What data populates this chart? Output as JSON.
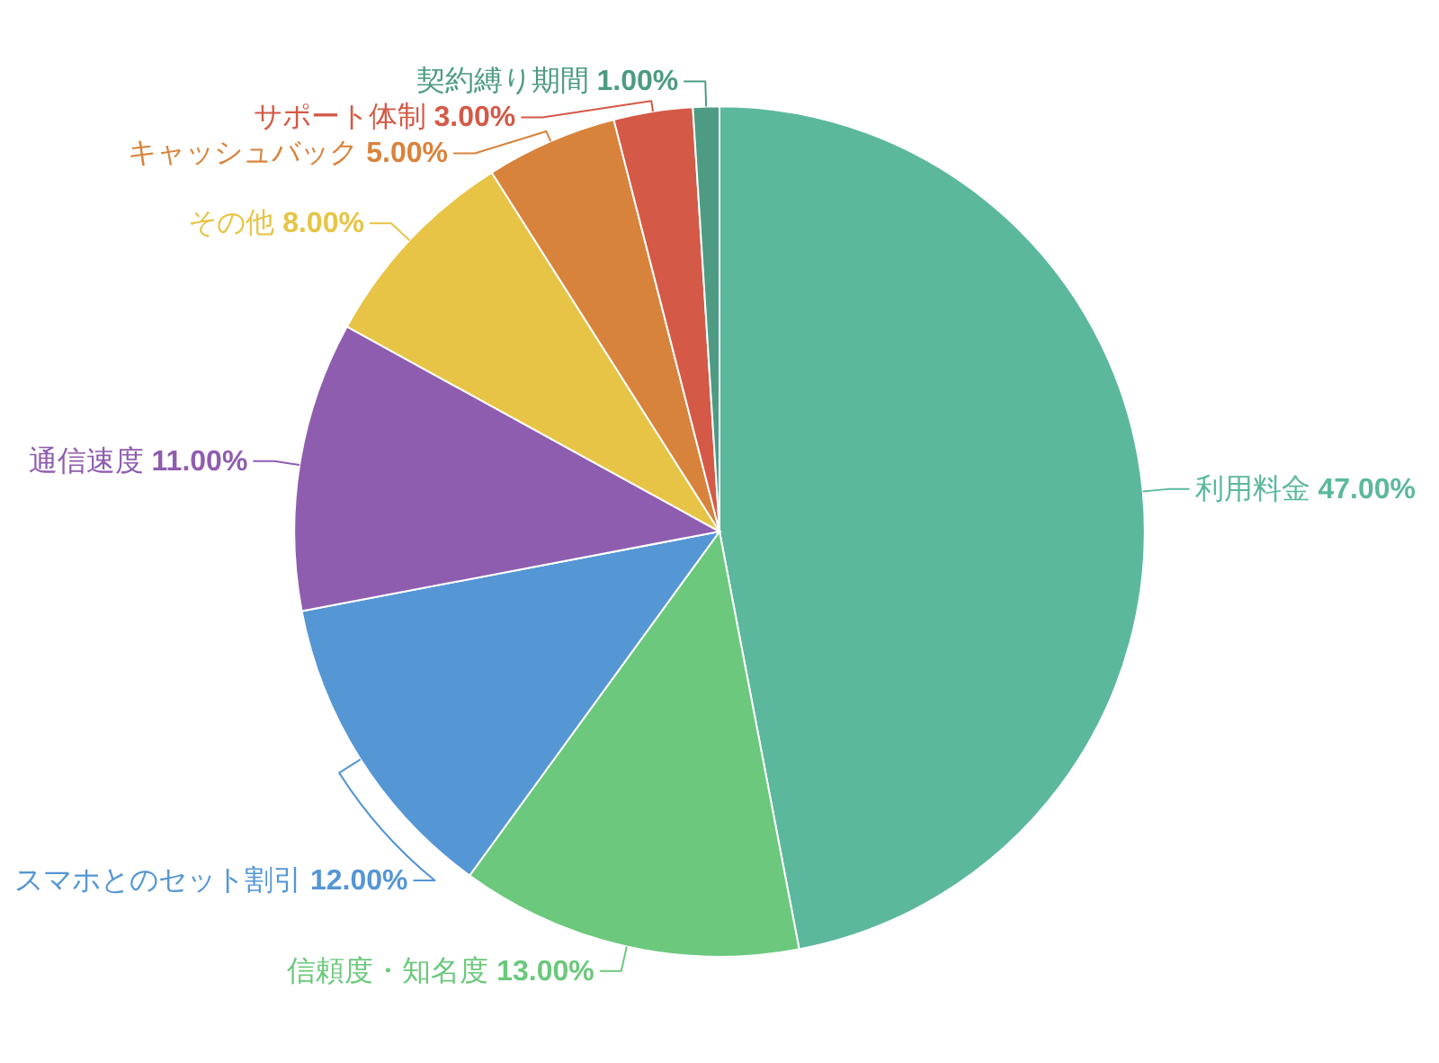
{
  "chart_data": {
    "type": "pie",
    "categories": [
      "利用料金",
      "信頼度・知名度",
      "スマホとのセット割引",
      "通信速度",
      "その他",
      "キャッシュバック",
      "サポート体制",
      "契約縛り期間"
    ],
    "values": [
      47,
      13,
      12,
      11,
      8,
      5,
      3,
      1
    ],
    "colors": [
      "#5cb89d",
      "#6bc87c",
      "#5596d4",
      "#8f5daf",
      "#e7c445",
      "#d8833b",
      "#d45946",
      "#4d9b82"
    ],
    "value_labels": [
      "47.00%",
      "13.00%",
      "12.00%",
      "11.00%",
      "8.00%",
      "5.00%",
      "3.00%",
      "1.00%"
    ]
  }
}
